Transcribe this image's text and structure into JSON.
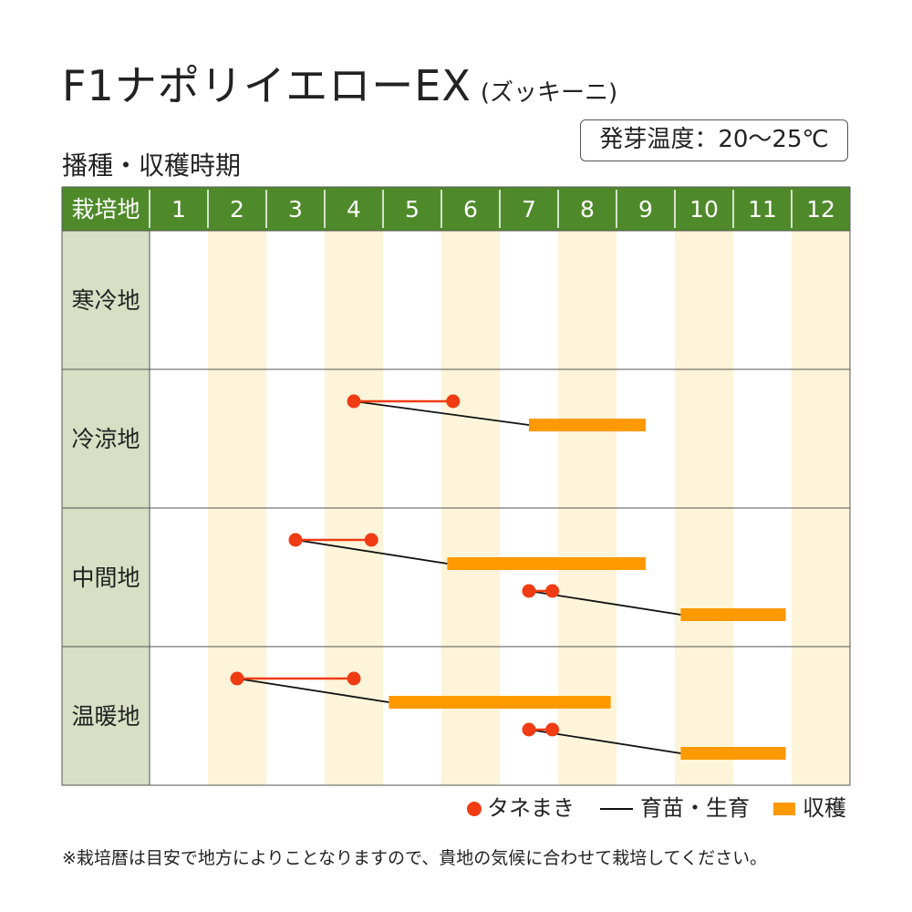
{
  "title": "F1ナポリイエローEX",
  "title_sub": "(ズッキーニ)",
  "temp_label": "発芽温度：20～25℃",
  "subtitle": "播種・収穫時期",
  "chart_data": {
    "type": "gantt",
    "header_label": "栽培地",
    "months": [
      "1",
      "2",
      "3",
      "4",
      "5",
      "6",
      "7",
      "8",
      "9",
      "10",
      "11",
      "12"
    ],
    "regions": [
      {
        "name": "寒冷地",
        "schedules": []
      },
      {
        "name": "冷涼地",
        "schedules": [
          {
            "sowing": [
              4.5,
              6.2
            ],
            "harvest": [
              7.5,
              9.5
            ]
          }
        ]
      },
      {
        "name": "中間地",
        "schedules": [
          {
            "sowing": [
              3.5,
              4.8
            ],
            "harvest": [
              6.1,
              9.5
            ]
          },
          {
            "sowing": [
              7.5,
              7.9
            ],
            "harvest": [
              10.1,
              11.9
            ]
          }
        ]
      },
      {
        "name": "温暖地",
        "schedules": [
          {
            "sowing": [
              2.5,
              4.5
            ],
            "harvest": [
              5.1,
              8.9
            ]
          },
          {
            "sowing": [
              7.5,
              7.9
            ],
            "harvest": [
              10.1,
              11.9
            ]
          }
        ]
      }
    ],
    "colors": {
      "header": "#4f8a2a",
      "region_col": "#d7dfc4",
      "stripe": "#fdf4d9",
      "sowing": "#f03c13",
      "harvest": "#ff9900",
      "nursery": "#111111"
    }
  },
  "legend": {
    "sowing": "タネまき",
    "nursery": "育苗・生育",
    "harvest": "収穫"
  },
  "note": "※栽培暦は目安で地方によりことなりますので、貴地の気候に合わせて栽培してください。"
}
